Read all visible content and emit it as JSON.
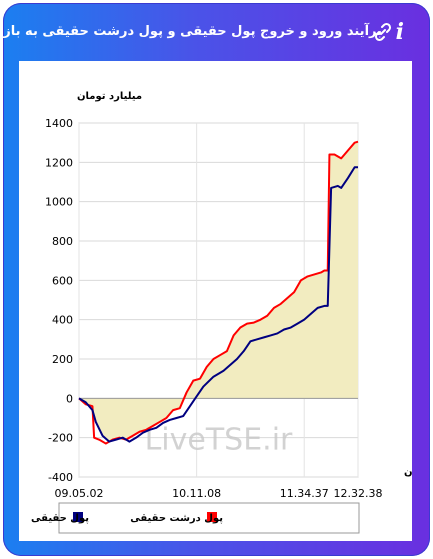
{
  "header": {
    "title": "برآیند ورود و خروج پول حقیقی و پول درشت حقیقی به بازار",
    "info_icon": "info-icon",
    "link_icon": "link-icon"
  },
  "chart_data": {
    "type": "line",
    "ylabel": "میلیارد تومان",
    "xlabel": "زمان",
    "ylim": [
      -400,
      1400
    ],
    "yticks": [
      -400,
      -200,
      0,
      200,
      400,
      600,
      800,
      1000,
      1200,
      1400
    ],
    "xtick_labels": [
      "09.05.02",
      "10.11.08",
      "11.34.37",
      "12.32.38"
    ],
    "grid": true,
    "watermark": "LiveTSE.ir",
    "legend": {
      "placement": "bottom",
      "entries": [
        "پول حقیقی",
        "پول درشت حقیقی"
      ]
    },
    "series": [
      {
        "name": "پول حقیقی",
        "color": "#000080",
        "values": [
          [
            0,
            0
          ],
          [
            2,
            -20
          ],
          [
            4,
            -60
          ],
          [
            5,
            -120
          ],
          [
            7,
            -190
          ],
          [
            9,
            -220
          ],
          [
            11,
            -210
          ],
          [
            13,
            -200
          ],
          [
            15,
            -220
          ],
          [
            17,
            -200
          ],
          [
            19,
            -175
          ],
          [
            21,
            -160
          ],
          [
            23,
            -150
          ],
          [
            25,
            -125
          ],
          [
            27,
            -110
          ],
          [
            29,
            -100
          ],
          [
            31,
            -90
          ],
          [
            33,
            -40
          ],
          [
            35,
            10
          ],
          [
            37,
            60
          ],
          [
            40,
            110
          ],
          [
            43,
            140
          ],
          [
            45,
            170
          ],
          [
            47,
            200
          ],
          [
            49,
            240
          ],
          [
            51,
            290
          ],
          [
            53,
            300
          ],
          [
            55,
            310
          ],
          [
            57,
            320
          ],
          [
            59,
            330
          ],
          [
            61,
            350
          ],
          [
            63,
            360
          ],
          [
            65,
            380
          ],
          [
            67,
            400
          ],
          [
            69,
            430
          ],
          [
            71,
            460
          ],
          [
            73,
            470
          ],
          [
            74,
            470
          ],
          [
            75,
            1070
          ],
          [
            77,
            1080
          ],
          [
            78,
            1070
          ],
          [
            80,
            1120
          ],
          [
            82,
            1175
          ],
          [
            83,
            1175
          ]
        ]
      },
      {
        "name": "پول درشت حقیقی",
        "color": "#ff0000",
        "values": [
          [
            0,
            0
          ],
          [
            2,
            -30
          ],
          [
            4,
            -40
          ],
          [
            4.5,
            -200
          ],
          [
            6,
            -210
          ],
          [
            8,
            -230
          ],
          [
            10,
            -210
          ],
          [
            12,
            -200
          ],
          [
            14,
            -210
          ],
          [
            16,
            -190
          ],
          [
            18,
            -170
          ],
          [
            20,
            -160
          ],
          [
            22,
            -140
          ],
          [
            24,
            -120
          ],
          [
            26,
            -100
          ],
          [
            28,
            -60
          ],
          [
            30,
            -50
          ],
          [
            32,
            30
          ],
          [
            34,
            90
          ],
          [
            36,
            100
          ],
          [
            38,
            160
          ],
          [
            40,
            200
          ],
          [
            42,
            220
          ],
          [
            44,
            240
          ],
          [
            46,
            320
          ],
          [
            48,
            360
          ],
          [
            50,
            380
          ],
          [
            52,
            385
          ],
          [
            54,
            400
          ],
          [
            56,
            420
          ],
          [
            58,
            460
          ],
          [
            60,
            480
          ],
          [
            62,
            510
          ],
          [
            64,
            540
          ],
          [
            66,
            600
          ],
          [
            68,
            620
          ],
          [
            70,
            630
          ],
          [
            72,
            640
          ],
          [
            73,
            650
          ],
          [
            74,
            650
          ],
          [
            74.5,
            1240
          ],
          [
            76,
            1240
          ],
          [
            78,
            1220
          ],
          [
            80,
            1260
          ],
          [
            82,
            1300
          ],
          [
            83,
            1305
          ]
        ]
      }
    ]
  }
}
